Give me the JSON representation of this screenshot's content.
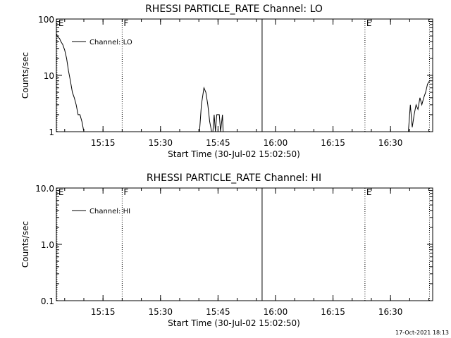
{
  "footer_timestamp": "17-Oct-2021 18:13",
  "chart_data": [
    {
      "type": "line",
      "title": "RHESSI PARTICLE_RATE Channel: LO",
      "xlabel": "Start Time (30-Jul-02 15:02:50)",
      "ylabel": "Counts/sec",
      "yscale": "log",
      "ylim": [
        1,
        100
      ],
      "xlim": [
        "15:02:50",
        "16:41:00"
      ],
      "x_ticks": [
        "15:15",
        "15:30",
        "15:45",
        "16:00",
        "16:15",
        "16:30"
      ],
      "y_ticks": [
        "1",
        "10",
        "100"
      ],
      "legend": "top-left",
      "series": [
        {
          "name": "Channel: LO",
          "x": [
            "15:02:50",
            "15:03:10",
            "15:03:40",
            "15:04:00",
            "15:04:30",
            "15:05:00",
            "15:05:30",
            "15:06:00",
            "15:06:30",
            "15:07:00",
            "15:07:30",
            "15:08:00",
            "15:08:30",
            "15:09:00",
            "15:09:30",
            "15:10:00",
            "15:10:20",
            "15:11:20",
            "15:40:10",
            "15:40:40",
            "15:41:20",
            "15:41:50",
            "15:42:20",
            "15:42:50",
            "15:43:20",
            "15:43:40",
            "15:44:00",
            "15:44:20",
            "15:44:40",
            "15:45:00",
            "15:45:20",
            "15:45:40",
            "15:46:10",
            "15:46:20",
            "15:46:40",
            "16:34:40",
            "16:35:10",
            "16:35:40",
            "16:36:10",
            "16:36:40",
            "16:37:10",
            "16:37:40",
            "16:38:10",
            "16:38:40",
            "16:39:10",
            "16:39:40",
            "16:40:10"
          ],
          "y": [
            55,
            48,
            45,
            40,
            35,
            28,
            20,
            12,
            8,
            5,
            4,
            3,
            2,
            2,
            1.5,
            1,
            1,
            1,
            1,
            3,
            6,
            5,
            3,
            1.5,
            1,
            1,
            2,
            1,
            2,
            2,
            2,
            1,
            2,
            1,
            1,
            1,
            3,
            1.2,
            2,
            3,
            2.5,
            4,
            3,
            4,
            5,
            7,
            8
          ]
        }
      ],
      "markers": [
        {
          "label": "E",
          "time": "15:03:00",
          "style": "dotted"
        },
        {
          "label": "F",
          "time": "15:20:00",
          "style": "dotted"
        },
        {
          "label": "",
          "time": "15:56:30",
          "style": "solid"
        },
        {
          "label": "E",
          "time": "16:23:20",
          "style": "dotted"
        },
        {
          "label": "",
          "time": "16:40:10",
          "style": "dotted"
        }
      ]
    },
    {
      "type": "line",
      "title": "RHESSI PARTICLE_RATE Channel: HI",
      "xlabel": "Start Time (30-Jul-02 15:02:50)",
      "ylabel": "Counts/sec",
      "yscale": "log",
      "ylim": [
        0.1,
        10
      ],
      "xlim": [
        "15:02:50",
        "16:41:00"
      ],
      "x_ticks": [
        "15:15",
        "15:30",
        "15:45",
        "16:00",
        "16:15",
        "16:30"
      ],
      "y_ticks": [
        "0.1",
        "1.0",
        "10.0"
      ],
      "legend": "top-left",
      "series": [
        {
          "name": "Channel: HI",
          "x": [],
          "y": []
        }
      ],
      "markers": [
        {
          "label": "E",
          "time": "15:03:00",
          "style": "dotted"
        },
        {
          "label": "F",
          "time": "15:20:00",
          "style": "dotted"
        },
        {
          "label": "",
          "time": "15:56:30",
          "style": "solid"
        },
        {
          "label": "E",
          "time": "16:23:20",
          "style": "dotted"
        },
        {
          "label": "",
          "time": "16:40:10",
          "style": "dotted"
        }
      ]
    }
  ]
}
